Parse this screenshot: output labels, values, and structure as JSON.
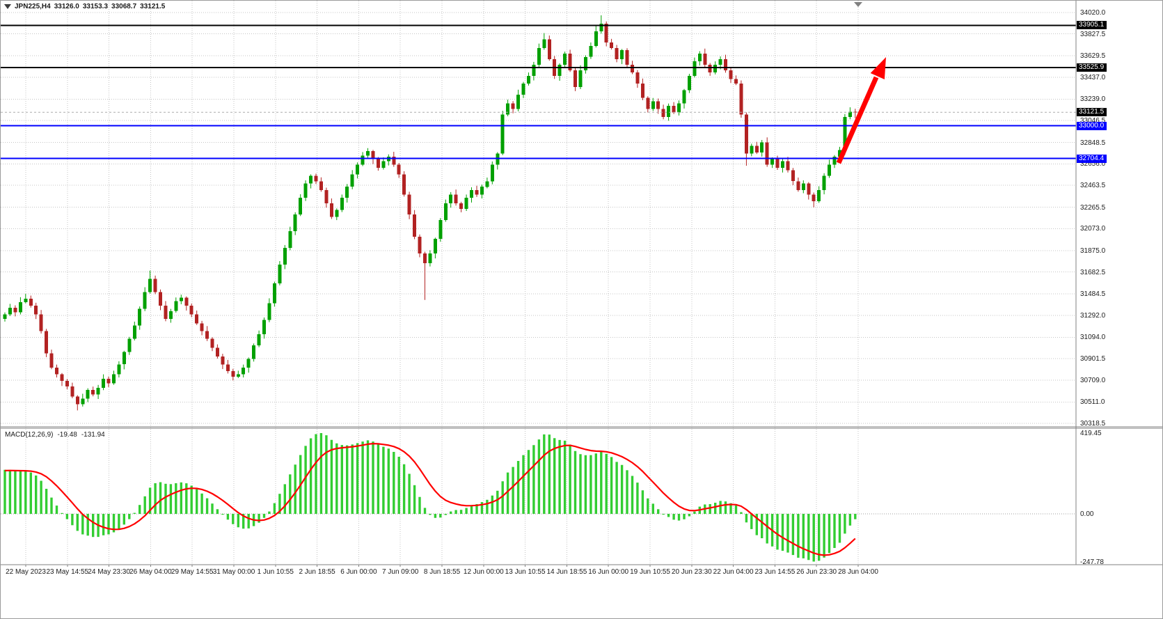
{
  "window": {
    "symbol": "JPN225,H4",
    "ohlc": {
      "open": "33126.0",
      "high": "33153.3",
      "low": "33068.7",
      "close": "33121.5"
    }
  },
  "indicator": {
    "label": "MACD(12,26,9)",
    "value": "-19.48",
    "signal_value": "-131.94"
  },
  "colors": {
    "background": "#FFFFFF",
    "grid": "#C4C4C4",
    "border": "#808080",
    "candle_up": "#00A000",
    "candle_down": "#B22222",
    "macd_histogram": "#32CD32",
    "macd_signal": "#FF0000",
    "hline_black": "#000000",
    "hline_blue": "#0000FF",
    "bid_line": "#ABABAB",
    "arrow": "#FF0000",
    "axis_text": "#1A1A1A"
  },
  "price_axis": {
    "gridline_labels": [
      "34020.0",
      "33827.5",
      "33629.5",
      "33437.0",
      "33239.0",
      "33046.5",
      "32848.5",
      "32656.0",
      "32463.5",
      "32265.5",
      "32073.0",
      "31875.0",
      "31682.5",
      "31484.5",
      "31292.0",
      "31094.0",
      "30901.5",
      "30709.0",
      "30511.0",
      "30318.5"
    ],
    "tags": [
      {
        "label": "33905.1",
        "bg": "#000000"
      },
      {
        "label": "33525.9",
        "bg": "#000000"
      },
      {
        "label": "33121.5",
        "bg": "#000000"
      },
      {
        "label": "33000.0",
        "bg": "#0000FF"
      },
      {
        "label": "32704.4",
        "bg": "#0000FF"
      }
    ]
  },
  "macd_axis": {
    "labels": [
      "419.45",
      "0.00",
      "-247.78"
    ]
  },
  "horizontal_lines": [
    {
      "price": 33905.1,
      "color": "#000000",
      "width": 2
    },
    {
      "price": 33525.9,
      "color": "#000000",
      "width": 2
    },
    {
      "price": 33000.0,
      "color": "#0000FF",
      "width": 2
    },
    {
      "price": 32704.4,
      "color": "#0000FF",
      "width": 2
    }
  ],
  "annotations": {
    "trend_arrow": {
      "type": "arrow",
      "direction": "up",
      "color": "#FF0000"
    }
  },
  "chart_data": {
    "type": "candlestick",
    "symbol": "JPN225",
    "timeframe": "H4",
    "title": "JPN225,H4",
    "ylim": [
      30318.5,
      34020.0
    ],
    "time_labels": [
      "22 May 2023",
      "23 May 14:55",
      "24 May 23:30",
      "26 May 04:00",
      "29 May 14:55",
      "31 May 00:00",
      "1 Jun 10:55",
      "2 Jun 18:55",
      "6 Jun 00:00",
      "7 Jun 09:00",
      "8 Jun 18:55",
      "12 Jun 00:00",
      "13 Jun 10:55",
      "14 Jun 18:55",
      "16 Jun 00:00",
      "19 Jun 10:55",
      "20 Jun 23:30",
      "22 Jun 04:00",
      "23 Jun 14:55",
      "26 Jun 23:30",
      "28 Jun 04:00"
    ],
    "first_open": 31260,
    "closes": [
      31300,
      31360,
      31320,
      31410,
      31440,
      31380,
      31300,
      31150,
      30950,
      30820,
      30760,
      30700,
      30650,
      30560,
      30490,
      30540,
      30620,
      30580,
      30640,
      30720,
      30680,
      30760,
      30850,
      30960,
      31080,
      31200,
      31350,
      31500,
      31620,
      31500,
      31380,
      31260,
      31330,
      31420,
      31450,
      31380,
      31300,
      31220,
      31150,
      31080,
      31000,
      30920,
      30850,
      30790,
      30740,
      30760,
      30820,
      30900,
      31020,
      31120,
      31250,
      31400,
      31580,
      31750,
      31900,
      32050,
      32200,
      32350,
      32480,
      32550,
      32500,
      32420,
      32300,
      32180,
      32240,
      32350,
      32450,
      32560,
      32650,
      32730,
      32770,
      32700,
      32620,
      32680,
      32720,
      32650,
      32560,
      32380,
      32200,
      32000,
      31850,
      31760,
      31850,
      31980,
      32150,
      32300,
      32380,
      32300,
      32250,
      32350,
      32420,
      32380,
      32450,
      32500,
      32650,
      32750,
      33100,
      33200,
      33150,
      33280,
      33380,
      33450,
      33550,
      33700,
      33780,
      33600,
      33450,
      33550,
      33650,
      33500,
      33350,
      33500,
      33620,
      33720,
      33850,
      33920,
      33750,
      33700,
      33600,
      33680,
      33550,
      33480,
      33380,
      33250,
      33150,
      33220,
      33150,
      33080,
      33180,
      33120,
      33200,
      33320,
      33450,
      33580,
      33650,
      33550,
      33480,
      33550,
      33600,
      33500,
      33420,
      33380,
      33100,
      32750,
      32820,
      32760,
      32850,
      32650,
      32700,
      32620,
      32680,
      32600,
      32500,
      32420,
      32480,
      32380,
      32320,
      32420,
      32550,
      32650,
      32720,
      32780,
      33080,
      33126,
      33121.5
    ],
    "wick_up_pattern": [
      18,
      35,
      22,
      45,
      15,
      30,
      25,
      40,
      20,
      33,
      28,
      12
    ],
    "wick_dn_pattern": [
      25,
      15,
      38,
      20,
      30,
      18,
      42,
      22,
      35,
      14,
      28,
      45
    ],
    "wick_overrides": {
      "4": [
        45,
        10
      ],
      "14": [
        12,
        55
      ],
      "28": [
        75,
        12
      ],
      "81": [
        15,
        330
      ],
      "96": [
        35,
        15
      ],
      "104": [
        55,
        15
      ],
      "114": [
        60,
        15
      ],
      "115": [
        75,
        20
      ],
      "143": [
        20,
        110
      ],
      "156": [
        18,
        55
      ],
      "164": [
        27,
        53
      ]
    },
    "last_candle": {
      "open": 33126.0,
      "high": 33153.3,
      "low": 33068.7,
      "close": 33121.5
    },
    "warmup_closes": [
      30250,
      30320,
      30280,
      30360,
      30430,
      30400,
      30480,
      30560,
      30520,
      30600,
      30680,
      30650,
      30730,
      30800,
      30770,
      30850,
      30930,
      30900,
      30980,
      31050,
      31020,
      31100,
      31170,
      31140,
      31210,
      31260,
      31230,
      31280,
      31310,
      31270
    ],
    "macd_params": [
      12,
      26,
      9
    ],
    "macd_range": [
      -247.78,
      419.45
    ],
    "macd_last_values": {
      "macd": -19.48,
      "signal": -131.94
    }
  }
}
